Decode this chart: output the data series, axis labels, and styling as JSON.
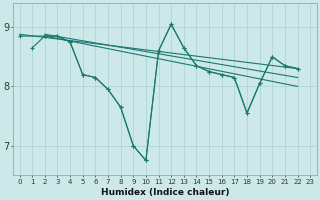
{
  "bg_color": "#cce8e8",
  "grid_color": "#aad0d0",
  "line_color": "#1a7870",
  "xlabel": "Humidex (Indice chaleur)",
  "ylim": [
    6.5,
    9.4
  ],
  "xlim": [
    -0.5,
    23.5
  ],
  "yticks": [
    7,
    8,
    9
  ],
  "xticks": [
    0,
    1,
    2,
    3,
    4,
    5,
    6,
    7,
    8,
    9,
    10,
    11,
    12,
    13,
    14,
    15,
    16,
    17,
    18,
    19,
    20,
    21,
    22,
    23
  ],
  "series1_x": [
    0,
    2,
    3,
    4,
    5,
    6,
    7,
    8,
    9,
    10,
    11,
    12,
    13,
    14,
    15,
    16,
    17,
    18,
    19,
    20,
    21,
    22
  ],
  "series1_y": [
    8.85,
    8.85,
    8.85,
    8.75,
    8.2,
    8.15,
    7.95,
    7.65,
    7.0,
    6.75,
    8.6,
    9.05,
    8.65,
    8.35,
    8.25,
    8.2,
    8.15,
    7.55,
    8.05,
    8.5,
    8.35,
    8.3
  ],
  "series2_x": [
    1,
    2,
    3,
    4,
    5,
    6,
    7,
    8,
    9,
    10,
    11,
    12,
    13,
    14,
    15,
    16,
    17,
    18,
    19,
    20,
    21,
    22
  ],
  "series2_y": [
    8.65,
    8.85,
    8.85,
    8.75,
    8.2,
    8.15,
    7.95,
    7.65,
    7.0,
    6.75,
    8.6,
    9.05,
    8.65,
    8.35,
    8.25,
    8.2,
    8.15,
    7.55,
    8.05,
    8.5,
    8.35,
    8.3
  ],
  "line1_x": [
    0,
    22
  ],
  "line1_y": [
    8.88,
    8.3
  ],
  "line2_x": [
    2,
    22
  ],
  "line2_y": [
    8.88,
    8.15
  ],
  "line3_x": [
    2,
    22
  ],
  "line3_y": [
    8.85,
    8.0
  ]
}
